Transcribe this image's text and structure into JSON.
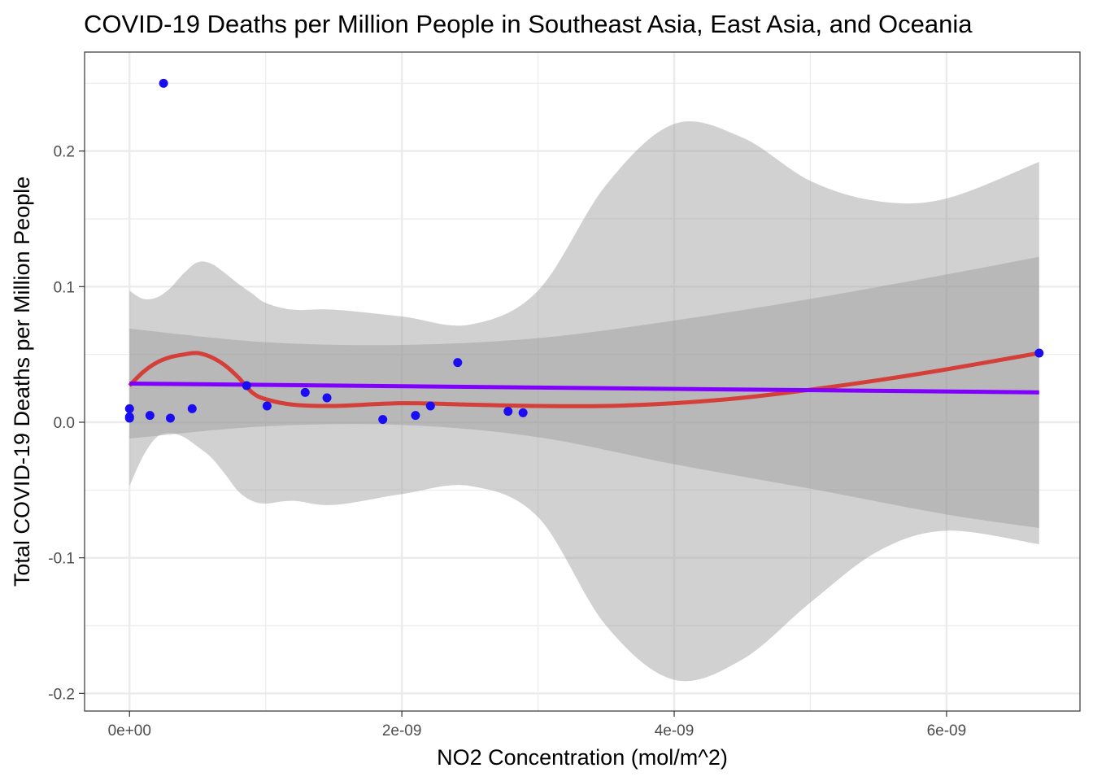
{
  "chart_data": {
    "type": "scatter",
    "title": "COVID-19 Deaths per Million People in Southeast Asia, East Asia, and Oceania",
    "xlabel": "NO2 Concentration (mol/m^2)",
    "ylabel": "Total COVID-19 Deaths per Million People",
    "xlim": [
      -3.3e-10,
      6.98e-09
    ],
    "ylim": [
      -0.213,
      0.273
    ],
    "x_ticks": [
      0,
      2e-09,
      4e-09,
      6e-09
    ],
    "x_tick_labels": [
      "0e+00",
      "2e-09",
      "4e-09",
      "6e-09"
    ],
    "y_ticks": [
      -0.2,
      -0.1,
      0.0,
      0.1,
      0.2
    ],
    "y_tick_labels": [
      "-0.2",
      "-0.1",
      "0.0",
      "0.1",
      "0.2"
    ],
    "grid": true,
    "colors": {
      "points": "#1a0df2",
      "linear_fit": "#8000ff",
      "loess_fit": "#d43f3a",
      "ribbon": "#999999",
      "grid": "#ebebeb",
      "panel_border": "#333333"
    },
    "series": [
      {
        "kind": "points",
        "x": [
          0,
          0,
          0,
          1.5e-10,
          2.5e-10,
          3e-10,
          4.6e-10,
          8.6e-10,
          1.01e-09,
          1.29e-09,
          1.45e-09,
          1.86e-09,
          2.1e-09,
          2.21e-09,
          2.41e-09,
          2.78e-09,
          2.89e-09,
          6.68e-09
        ],
        "y": [
          0.01,
          0.004,
          0.003,
          0.005,
          0.25,
          0.003,
          0.01,
          0.027,
          0.012,
          0.022,
          0.018,
          0.002,
          0.005,
          0.012,
          0.044,
          0.008,
          0.007,
          0.051
        ]
      },
      {
        "kind": "linear_fit",
        "x": [
          0,
          6.68e-09
        ],
        "y": [
          0.0285,
          0.022
        ],
        "ci_x": [
          0,
          1e-09,
          2e-09,
          3e-09,
          4e-09,
          5e-09,
          6e-09,
          6.68e-09
        ],
        "ci_upper": [
          0.069,
          0.059,
          0.057,
          0.062,
          0.075,
          0.091,
          0.109,
          0.122
        ],
        "ci_lower": [
          -0.012,
          -0.003,
          -0.002,
          -0.011,
          -0.031,
          -0.049,
          -0.068,
          -0.078
        ]
      },
      {
        "kind": "loess_fit",
        "x": [
          0,
          1e-10,
          2e-10,
          3e-10,
          4e-10,
          5e-10,
          6e-10,
          7e-10,
          8e-10,
          9e-10,
          1e-09,
          1.2e-09,
          1.5e-09,
          2e-09,
          2.5e-09,
          3e-09,
          3.5e-09,
          4e-09,
          4.5e-09,
          5e-09,
          5.5e-09,
          6e-09,
          6.68e-09
        ],
        "y": [
          0.027,
          0.037,
          0.044,
          0.048,
          0.05,
          0.051,
          0.048,
          0.042,
          0.033,
          0.022,
          0.017,
          0.013,
          0.012,
          0.014,
          0.013,
          0.012,
          0.012,
          0.014,
          0.018,
          0.024,
          0.031,
          0.039,
          0.051
        ],
        "ci_x": [
          0,
          1e-10,
          2e-10,
          3e-10,
          4e-10,
          5e-10,
          6e-10,
          7e-10,
          8e-10,
          9e-10,
          1e-09,
          1.2e-09,
          1.5e-09,
          2e-09,
          2.5e-09,
          3e-09,
          3.5e-09,
          4e-09,
          4.5e-09,
          5e-09,
          5.5e-09,
          6e-09,
          6.68e-09
        ],
        "ci_upper": [
          0.097,
          0.091,
          0.092,
          0.099,
          0.11,
          0.118,
          0.117,
          0.11,
          0.102,
          0.095,
          0.088,
          0.083,
          0.083,
          0.078,
          0.072,
          0.097,
          0.175,
          0.22,
          0.21,
          0.178,
          0.163,
          0.165,
          0.192
        ],
        "ci_lower": [
          -0.047,
          -0.025,
          -0.011,
          -0.008,
          -0.011,
          -0.018,
          -0.026,
          -0.038,
          -0.051,
          -0.058,
          -0.06,
          -0.058,
          -0.061,
          -0.053,
          -0.047,
          -0.07,
          -0.15,
          -0.19,
          -0.175,
          -0.133,
          -0.095,
          -0.08,
          -0.09
        ]
      }
    ]
  }
}
